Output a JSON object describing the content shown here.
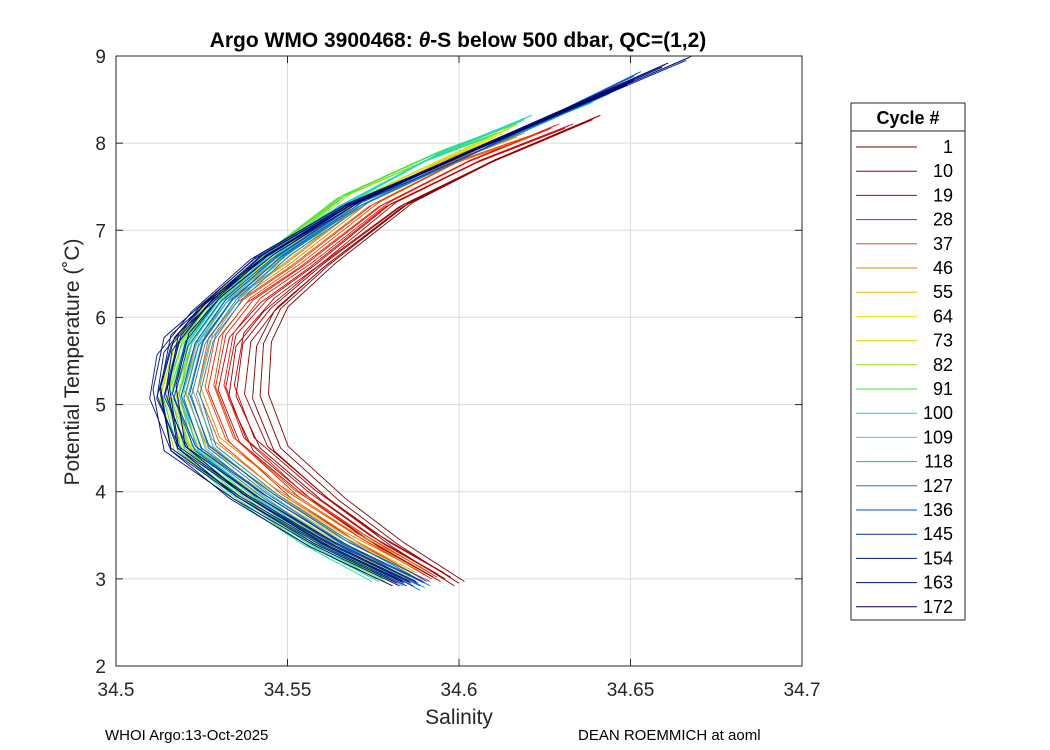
{
  "chart_data": {
    "type": "line",
    "title_prefix": "Argo WMO 3900468: ",
    "title_theta": "θ",
    "title_suffix": "-S below 500 dbar,  QC=(1,2)",
    "xlabel": "Salinity",
    "ylabel": "Potential Temperature (˚C)",
    "xlim": [
      34.5,
      34.7
    ],
    "ylim": [
      2,
      9
    ],
    "x_ticks": [
      "34.5",
      "34.55",
      "34.6",
      "34.65",
      "34.7"
    ],
    "y_ticks": [
      "2",
      "3",
      "4",
      "5",
      "6",
      "7",
      "8",
      "9"
    ],
    "grid": true,
    "legend_position": "outside-right",
    "legend_title": "Cycle #",
    "legend": [
      {
        "label": "1",
        "color": "#7f0000"
      },
      {
        "label": "10",
        "color": "#9b0000"
      },
      {
        "label": "19",
        "color": "#c40000"
      },
      {
        "label": "28",
        "color": "#e31a00"
      },
      {
        "label": "37",
        "color": "#e84800"
      },
      {
        "label": "46",
        "color": "#d98500"
      },
      {
        "label": "55",
        "color": "#e8b800"
      },
      {
        "label": "64",
        "color": "#f2e600"
      },
      {
        "label": "73",
        "color": "#c8e800"
      },
      {
        "label": "82",
        "color": "#8fe000"
      },
      {
        "label": "91",
        "color": "#3fe03f"
      },
      {
        "label": "100",
        "color": "#17e0a0"
      },
      {
        "label": "109",
        "color": "#20d8d0"
      },
      {
        "label": "118",
        "color": "#1ab0e0"
      },
      {
        "label": "127",
        "color": "#0a80c8"
      },
      {
        "label": "136",
        "color": "#0050c0"
      },
      {
        "label": "145",
        "color": "#0030a8"
      },
      {
        "label": "154",
        "color": "#00188c"
      },
      {
        "label": "163",
        "color": "#000c78"
      },
      {
        "label": "172",
        "color": "#000066"
      }
    ],
    "series": [
      {
        "name": "1",
        "points": [
          [
            34.6,
            2.95
          ],
          [
            34.582,
            3.4
          ],
          [
            34.565,
            3.9
          ],
          [
            34.548,
            4.5
          ],
          [
            34.542,
            5.1
          ],
          [
            34.543,
            5.7
          ],
          [
            34.548,
            6.1
          ],
          [
            34.562,
            6.6
          ],
          [
            34.585,
            7.3
          ],
          [
            34.61,
            7.8
          ],
          [
            34.64,
            8.3
          ]
        ]
      },
      {
        "name": "10",
        "points": [
          [
            34.596,
            3.0
          ],
          [
            34.578,
            3.4
          ],
          [
            34.56,
            3.9
          ],
          [
            34.542,
            4.5
          ],
          [
            34.535,
            5.1
          ],
          [
            34.537,
            5.7
          ],
          [
            34.545,
            6.1
          ],
          [
            34.56,
            6.6
          ],
          [
            34.584,
            7.3
          ],
          [
            34.61,
            7.8
          ],
          [
            34.64,
            8.3
          ]
        ]
      },
      {
        "name": "19",
        "points": [
          [
            34.594,
            3.05
          ],
          [
            34.574,
            3.5
          ],
          [
            34.556,
            4.0
          ],
          [
            34.538,
            4.6
          ],
          [
            34.532,
            5.2
          ],
          [
            34.535,
            5.8
          ],
          [
            34.544,
            6.2
          ],
          [
            34.558,
            6.6
          ],
          [
            34.58,
            7.3
          ],
          [
            34.606,
            7.8
          ],
          [
            34.632,
            8.2
          ]
        ]
      },
      {
        "name": "28",
        "points": [
          [
            34.592,
            3.0
          ],
          [
            34.572,
            3.45
          ],
          [
            34.553,
            3.95
          ],
          [
            34.535,
            4.6
          ],
          [
            34.529,
            5.2
          ],
          [
            34.532,
            5.8
          ],
          [
            34.54,
            6.2
          ],
          [
            34.555,
            6.6
          ],
          [
            34.578,
            7.3
          ],
          [
            34.603,
            7.8
          ],
          [
            34.628,
            8.2
          ]
        ]
      },
      {
        "name": "37",
        "points": [
          [
            34.59,
            3.05
          ],
          [
            34.57,
            3.5
          ],
          [
            34.55,
            4.0
          ],
          [
            34.532,
            4.6
          ],
          [
            34.526,
            5.2
          ],
          [
            34.529,
            5.8
          ],
          [
            34.537,
            6.2
          ],
          [
            34.552,
            6.6
          ],
          [
            34.575,
            7.3
          ],
          [
            34.6,
            7.8
          ],
          [
            34.622,
            8.1
          ]
        ]
      },
      {
        "name": "46",
        "points": [
          [
            34.588,
            3.1
          ],
          [
            34.566,
            3.55
          ],
          [
            34.546,
            4.05
          ],
          [
            34.528,
            4.6
          ],
          [
            34.522,
            5.2
          ],
          [
            34.526,
            5.8
          ],
          [
            34.534,
            6.2
          ],
          [
            34.549,
            6.6
          ],
          [
            34.572,
            7.3
          ],
          [
            34.598,
            7.8
          ],
          [
            34.618,
            8.1
          ]
        ]
      },
      {
        "name": "55",
        "points": [
          [
            34.586,
            3.05
          ],
          [
            34.564,
            3.5
          ],
          [
            34.543,
            4.0
          ],
          [
            34.524,
            4.5
          ],
          [
            34.518,
            5.1
          ],
          [
            34.522,
            5.7
          ],
          [
            34.531,
            6.2
          ],
          [
            34.546,
            6.6
          ],
          [
            34.57,
            7.3
          ],
          [
            34.595,
            7.8
          ],
          [
            34.614,
            8.1
          ]
        ]
      },
      {
        "name": "64",
        "points": [
          [
            34.584,
            3.0
          ],
          [
            34.562,
            3.45
          ],
          [
            34.541,
            3.95
          ],
          [
            34.522,
            4.5
          ],
          [
            34.516,
            5.1
          ],
          [
            34.519,
            5.7
          ],
          [
            34.528,
            6.2
          ],
          [
            34.544,
            6.6
          ],
          [
            34.568,
            7.3
          ],
          [
            34.594,
            7.8
          ],
          [
            34.612,
            8.1
          ]
        ]
      },
      {
        "name": "73",
        "points": [
          [
            34.582,
            3.0
          ],
          [
            34.56,
            3.45
          ],
          [
            34.539,
            3.95
          ],
          [
            34.52,
            4.5
          ],
          [
            34.515,
            5.1
          ],
          [
            34.518,
            5.7
          ],
          [
            34.527,
            6.2
          ],
          [
            34.543,
            6.6
          ],
          [
            34.567,
            7.3
          ],
          [
            34.594,
            7.8
          ],
          [
            34.616,
            8.2
          ]
        ]
      },
      {
        "name": "82",
        "points": [
          [
            34.58,
            3.0
          ],
          [
            34.558,
            3.45
          ],
          [
            34.538,
            3.95
          ],
          [
            34.519,
            4.5
          ],
          [
            34.515,
            5.1
          ],
          [
            34.519,
            5.7
          ],
          [
            34.528,
            6.2
          ],
          [
            34.543,
            6.7
          ],
          [
            34.567,
            7.4
          ],
          [
            34.596,
            7.9
          ],
          [
            34.62,
            8.3
          ]
        ]
      },
      {
        "name": "91",
        "points": [
          [
            34.578,
            3.0
          ],
          [
            34.556,
            3.45
          ],
          [
            34.537,
            3.95
          ],
          [
            34.52,
            4.5
          ],
          [
            34.516,
            5.1
          ],
          [
            34.52,
            5.7
          ],
          [
            34.529,
            6.2
          ],
          [
            34.543,
            6.7
          ],
          [
            34.566,
            7.4
          ],
          [
            34.594,
            7.9
          ],
          [
            34.618,
            8.25
          ]
        ]
      },
      {
        "name": "100",
        "points": [
          [
            34.576,
            3.0
          ],
          [
            34.555,
            3.45
          ],
          [
            34.536,
            3.95
          ],
          [
            34.52,
            4.5
          ],
          [
            34.516,
            5.1
          ],
          [
            34.521,
            5.7
          ],
          [
            34.53,
            6.2
          ],
          [
            34.543,
            6.7
          ],
          [
            34.562,
            7.2
          ],
          [
            34.59,
            7.8
          ],
          [
            34.61,
            8.1
          ]
        ]
      },
      {
        "name": "109",
        "points": [
          [
            34.578,
            3.0
          ],
          [
            34.557,
            3.45
          ],
          [
            34.538,
            3.95
          ],
          [
            34.521,
            4.5
          ],
          [
            34.517,
            5.1
          ],
          [
            34.522,
            5.7
          ],
          [
            34.531,
            6.2
          ],
          [
            34.545,
            6.7
          ],
          [
            34.566,
            7.3
          ],
          [
            34.595,
            7.9
          ],
          [
            34.62,
            8.3
          ]
        ]
      },
      {
        "name": "118",
        "points": [
          [
            34.585,
            2.95
          ],
          [
            34.563,
            3.4
          ],
          [
            34.543,
            3.95
          ],
          [
            34.526,
            4.5
          ],
          [
            34.521,
            5.1
          ],
          [
            34.525,
            5.7
          ],
          [
            34.534,
            6.2
          ],
          [
            34.548,
            6.7
          ],
          [
            34.57,
            7.3
          ],
          [
            34.602,
            7.9
          ],
          [
            34.64,
            8.5
          ]
        ]
      },
      {
        "name": "127",
        "points": [
          [
            34.59,
            2.9
          ],
          [
            34.567,
            3.4
          ],
          [
            34.545,
            3.95
          ],
          [
            34.527,
            4.5
          ],
          [
            34.522,
            5.1
          ],
          [
            34.526,
            5.7
          ],
          [
            34.535,
            6.2
          ],
          [
            34.549,
            6.7
          ],
          [
            34.572,
            7.3
          ],
          [
            34.605,
            7.9
          ],
          [
            34.645,
            8.6
          ]
        ]
      },
      {
        "name": "136",
        "points": [
          [
            34.59,
            2.95
          ],
          [
            34.566,
            3.4
          ],
          [
            34.544,
            3.95
          ],
          [
            34.525,
            4.5
          ],
          [
            34.519,
            5.1
          ],
          [
            34.523,
            5.7
          ],
          [
            34.532,
            6.2
          ],
          [
            34.547,
            6.7
          ],
          [
            34.57,
            7.3
          ],
          [
            34.605,
            7.9
          ],
          [
            34.652,
            8.8
          ]
        ]
      },
      {
        "name": "145",
        "points": [
          [
            34.588,
            2.95
          ],
          [
            34.564,
            3.4
          ],
          [
            34.541,
            3.95
          ],
          [
            34.521,
            4.5
          ],
          [
            34.514,
            5.1
          ],
          [
            34.518,
            5.7
          ],
          [
            34.528,
            6.2
          ],
          [
            34.544,
            6.7
          ],
          [
            34.568,
            7.3
          ],
          [
            34.606,
            7.95
          ],
          [
            34.66,
            8.9
          ]
        ]
      },
      {
        "name": "154",
        "points": [
          [
            34.586,
            2.95
          ],
          [
            34.562,
            3.4
          ],
          [
            34.538,
            3.95
          ],
          [
            34.518,
            4.5
          ],
          [
            34.512,
            5.1
          ],
          [
            34.514,
            5.6
          ],
          [
            34.524,
            6.1
          ],
          [
            34.541,
            6.7
          ],
          [
            34.567,
            7.3
          ],
          [
            34.606,
            7.95
          ],
          [
            34.667,
            8.98
          ]
        ]
      },
      {
        "name": "163",
        "points": [
          [
            34.584,
            2.95
          ],
          [
            34.56,
            3.4
          ],
          [
            34.536,
            3.95
          ],
          [
            34.516,
            4.5
          ],
          [
            34.513,
            5.2
          ],
          [
            34.516,
            5.8
          ],
          [
            34.526,
            6.15
          ],
          [
            34.542,
            6.7
          ],
          [
            34.568,
            7.3
          ],
          [
            34.608,
            8.0
          ],
          [
            34.66,
            8.9
          ]
        ]
      },
      {
        "name": "172",
        "points": [
          [
            34.582,
            2.95
          ],
          [
            34.558,
            3.4
          ],
          [
            34.535,
            3.95
          ],
          [
            34.518,
            4.5
          ],
          [
            34.515,
            5.2
          ],
          [
            34.519,
            5.8
          ],
          [
            34.528,
            6.2
          ],
          [
            34.544,
            6.7
          ],
          [
            34.569,
            7.3
          ],
          [
            34.606,
            7.95
          ],
          [
            34.65,
            8.7
          ]
        ]
      }
    ]
  },
  "footer": {
    "left": "WHOI Argo:13-Oct-2025",
    "right": "DEAN ROEMMICH at aoml"
  }
}
